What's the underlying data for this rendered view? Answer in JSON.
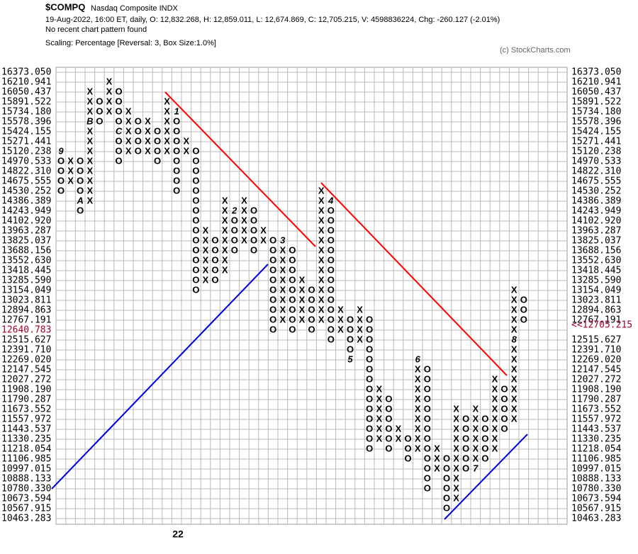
{
  "chart_data": {
    "type": "point-and-figure",
    "title": "$COMPQ",
    "subtitle": "Nasdaq Composite  INDX",
    "info": "19-Aug-2022, 16:00 ET, daily, O: 12,832.268, H: 12,859.011, L: 12,674.869, C: 12,705.215, V: 4598836224, Chg: -260.127 (-2.01%)",
    "pattern_note": "No recent chart pattern found",
    "scaling": "Scaling: Percentage [Reversal: 3, Box Size:1.0%]",
    "credit": "(c) StockCharts.com",
    "year_label": "22",
    "log_scale": true,
    "grid": true,
    "x_color": "#000000",
    "o_color": "#a3002b",
    "marker_color": "#8a0f3c",
    "line_colors": {
      "resistance": "#ff0000",
      "support": "#0000dd"
    },
    "ylim": [
      10463.283,
      16373.05
    ],
    "yticks": [
      {
        "value": 16373.05,
        "label": "16373.050"
      },
      16210.941,
      16050.437,
      15891.522,
      {
        "value": 15734.18,
        "label": "15734.180"
      },
      15578.396,
      15424.155,
      15271.441,
      15120.238,
      14970.533,
      {
        "value": 14822.31,
        "label": "14822.310"
      },
      14675.555,
      14530.252,
      14386.389,
      14243.949,
      {
        "value": 14102.92,
        "label": "14102.920"
      },
      13963.287,
      13825.037,
      13688.156,
      {
        "value": 13552.63,
        "label": "13552.630"
      },
      13418.445,
      {
        "value": 13285.59,
        "label": "13285.590"
      },
      13154.049,
      13023.811,
      12894.863,
      12767.191,
      {
        "value": 12640.783,
        "label": "12640.783",
        "color": "#a3002b"
      },
      12515.627,
      {
        "value": 12391.71,
        "label": "12391.710"
      },
      {
        "value": 12269.02,
        "label": "12269.020"
      },
      12147.545,
      12027.272,
      {
        "value": 11908.19,
        "label": "11908.190"
      },
      11790.287,
      11673.552,
      11557.972,
      11443.537,
      11330.235,
      11218.054,
      11106.985,
      10997.015,
      10888.133,
      {
        "value": 10780.33,
        "label": "10780.330"
      },
      10673.594,
      10567.915,
      10463.283
    ],
    "y2ticks": [
      {
        "value": 16373.05,
        "label": "16373.050"
      },
      16210.941,
      16050.437,
      15891.522,
      {
        "value": 15734.18,
        "label": "15734.180"
      },
      15578.396,
      15424.155,
      15271.441,
      15120.238,
      14970.533,
      {
        "value": 14822.31,
        "label": "14822.310"
      },
      14675.555,
      14530.252,
      14386.389,
      14243.949,
      {
        "value": 14102.92,
        "label": "14102.920"
      },
      13963.287,
      13825.037,
      13688.156,
      {
        "value": 13552.63,
        "label": "13552.630"
      },
      13418.445,
      {
        "value": 13285.59,
        "label": "13285.590"
      },
      13154.049,
      13023.811,
      12894.863,
      12767.191,
      {
        "value": 12705.215,
        "label": "<<12705.215",
        "color": "#a3002b"
      },
      12515.627,
      {
        "value": 12391.71,
        "label": "12391.710"
      },
      {
        "value": 12269.02,
        "label": "12269.020"
      },
      12147.545,
      12027.272,
      {
        "value": 11908.19,
        "label": "11908.190"
      },
      11790.287,
      11673.552,
      11557.972,
      11443.537,
      11330.235,
      11218.054,
      11106.985,
      10997.015,
      10888.133,
      {
        "value": 10780.33,
        "label": "10780.330"
      },
      10673.594,
      10567.915,
      10463.283
    ],
    "columns": [
      {
        "kind": "O",
        "high": 15120.238,
        "low": 14530.252,
        "markers": [
          {
            "box": 15120.238,
            "label": "9"
          }
        ]
      },
      {
        "kind": "X",
        "high": 14970.533,
        "low": 14675.555
      },
      {
        "kind": "O",
        "high": 14970.533,
        "low": 14243.949,
        "markers": [
          {
            "box": 14386.389,
            "label": "A"
          }
        ]
      },
      {
        "kind": "X",
        "high": 16050.437,
        "low": 14386.389,
        "markers": [
          {
            "box": 15578.396,
            "label": "B"
          }
        ]
      },
      {
        "kind": "O",
        "high": 15891.522,
        "low": 15578.396
      },
      {
        "kind": "X",
        "high": 16210.941,
        "low": 15734.18
      },
      {
        "kind": "O",
        "high": 16050.437,
        "low": 14970.533,
        "markers": [
          {
            "box": 15424.155,
            "label": "C"
          }
        ]
      },
      {
        "kind": "X",
        "high": 15734.18,
        "low": 15120.238
      },
      {
        "kind": "O",
        "high": 15578.396,
        "low": 15120.238
      },
      {
        "kind": "X",
        "high": 15578.396,
        "low": 15120.238
      },
      {
        "kind": "O",
        "high": 15424.155,
        "low": 14970.533
      },
      {
        "kind": "X",
        "high": 15891.522,
        "low": 15120.238
      },
      {
        "kind": "O",
        "high": 15734.18,
        "low": 14530.252,
        "markers": [
          {
            "box": 15734.18,
            "label": "1"
          }
        ]
      },
      {
        "kind": "X",
        "high": 15271.441,
        "low": 15120.238
      },
      {
        "kind": "O",
        "high": 15120.238,
        "low": 13154.049
      },
      {
        "kind": "X",
        "high": 13963.287,
        "low": 13285.59
      },
      {
        "kind": "O",
        "high": 13825.037,
        "low": 13285.59
      },
      {
        "kind": "X",
        "high": 14386.389,
        "low": 13418.445
      },
      {
        "kind": "O",
        "high": 14243.949,
        "low": 13688.156,
        "markers": [
          {
            "box": 14243.949,
            "label": "2"
          }
        ]
      },
      {
        "kind": "X",
        "high": 14386.389,
        "low": 13825.037
      },
      {
        "kind": "O",
        "high": 14243.949,
        "low": 13688.156
      },
      {
        "kind": "X",
        "high": 13963.287,
        "low": 13825.037
      },
      {
        "kind": "O",
        "high": 13825.037,
        "low": 12640.783
      },
      {
        "kind": "X",
        "high": 13825.037,
        "low": 12767.191,
        "markers": [
          {
            "box": 13825.037,
            "label": "3"
          }
        ]
      },
      {
        "kind": "O",
        "high": 13688.156,
        "low": 12640.783
      },
      {
        "kind": "X",
        "high": 13285.59,
        "low": 12767.191
      },
      {
        "kind": "O",
        "high": 13154.049,
        "low": 12640.783
      },
      {
        "kind": "X",
        "high": 14530.252,
        "low": 12767.191
      },
      {
        "kind": "O",
        "high": 14386.389,
        "low": 12515.627,
        "markers": [
          {
            "box": 14386.389,
            "label": "4"
          }
        ]
      },
      {
        "kind": "X",
        "high": 12894.863,
        "low": 12640.783
      },
      {
        "kind": "O",
        "high": 12767.191,
        "low": 12269.02,
        "markers": [
          {
            "box": 12269.02,
            "label": "5"
          }
        ]
      },
      {
        "kind": "X",
        "high": 12894.863,
        "low": 12515.627
      },
      {
        "kind": "O",
        "high": 12767.191,
        "low": 11218.054
      },
      {
        "kind": "X",
        "high": 11908.19,
        "low": 11330.235
      },
      {
        "kind": "O",
        "high": 11790.287,
        "low": 11218.054
      },
      {
        "kind": "X",
        "high": 11443.537,
        "low": 11330.235
      },
      {
        "kind": "O",
        "high": 11330.235,
        "low": 11106.985
      },
      {
        "kind": "X",
        "high": 12269.02,
        "low": 11218.054,
        "markers": [
          {
            "box": 12269.02,
            "label": "6"
          }
        ]
      },
      {
        "kind": "O",
        "high": 12147.545,
        "low": 10780.33
      },
      {
        "kind": "X",
        "high": 11218.054,
        "low": 10997.015
      },
      {
        "kind": "O",
        "high": 11106.985,
        "low": 10567.915
      },
      {
        "kind": "X",
        "high": 11673.552,
        "low": 10673.594
      },
      {
        "kind": "O",
        "high": 11557.972,
        "low": 10997.015
      },
      {
        "kind": "X",
        "high": 11673.552,
        "low": 10997.015,
        "markers": [
          {
            "box": 10997.015,
            "label": "7"
          }
        ]
      },
      {
        "kind": "O",
        "high": 11557.972,
        "low": 11106.985
      },
      {
        "kind": "X",
        "high": 12027.272,
        "low": 11218.054
      },
      {
        "kind": "O",
        "high": 11908.19,
        "low": 11443.537
      },
      {
        "kind": "X",
        "high": 13154.049,
        "low": 11557.972,
        "markers": [
          {
            "box": 12515.627,
            "label": "8"
          }
        ]
      },
      {
        "kind": "O",
        "high": 13023.811,
        "low": 12767.191
      }
    ]
  }
}
